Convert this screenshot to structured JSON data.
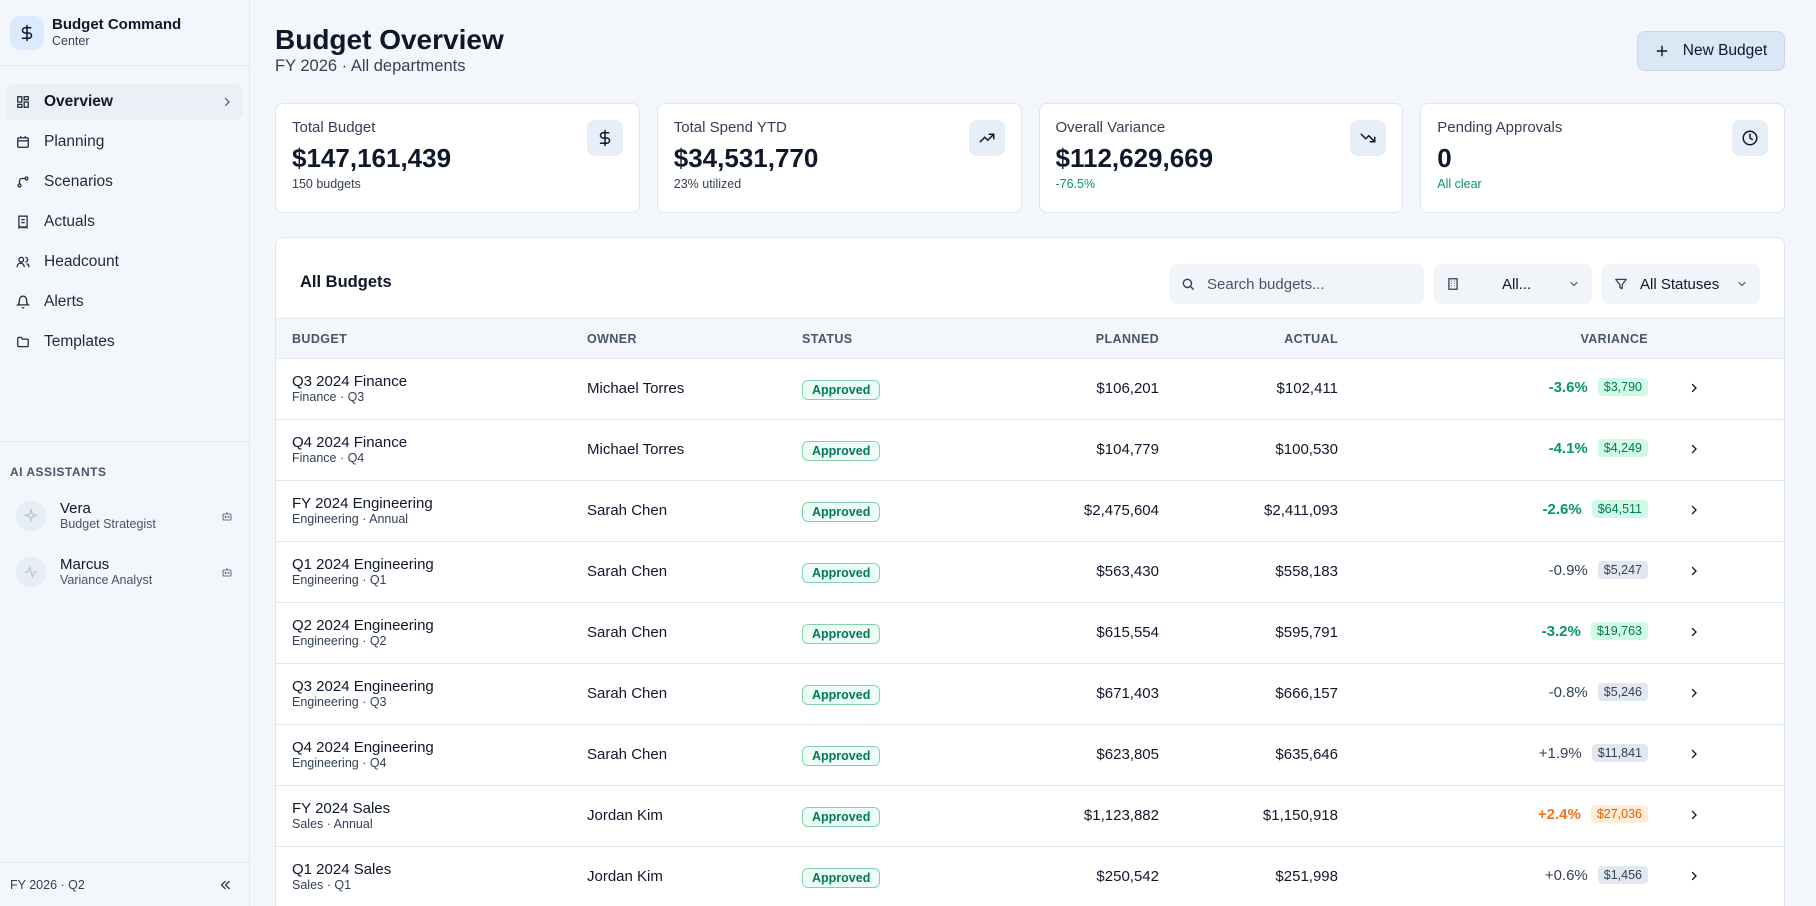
{
  "sidebar": {
    "brand_title": "Budget Command",
    "brand_sub": "Center",
    "nav": [
      {
        "label": "Overview",
        "icon": "grid-icon",
        "active": true
      },
      {
        "label": "Planning",
        "icon": "calendar-icon"
      },
      {
        "label": "Scenarios",
        "icon": "branch-icon"
      },
      {
        "label": "Actuals",
        "icon": "receipt-icon"
      },
      {
        "label": "Headcount",
        "icon": "users-icon"
      },
      {
        "label": "Alerts",
        "icon": "bell-icon"
      },
      {
        "label": "Templates",
        "icon": "folder-icon"
      }
    ],
    "section_label": "AI ASSISTANTS",
    "assistants": [
      {
        "name": "Vera",
        "role": "Budget Strategist"
      },
      {
        "name": "Marcus",
        "role": "Variance Analyst"
      }
    ],
    "footer_period": "FY 2026 · Q2"
  },
  "header": {
    "title": "Budget Overview",
    "subtitle": "FY 2026 · All departments",
    "new_button": "New Budget"
  },
  "cards": [
    {
      "label": "Total Budget",
      "value": "$147,161,439",
      "note": "150 budgets",
      "note_color": "default",
      "icon": "dollar-icon"
    },
    {
      "label": "Total Spend YTD",
      "value": "$34,531,770",
      "note": "23% utilized",
      "note_color": "default",
      "icon": "trending-up-icon"
    },
    {
      "label": "Overall Variance",
      "value": "$112,629,669",
      "note": "-76.5%",
      "note_color": "green",
      "icon": "trending-down-icon"
    },
    {
      "label": "Pending Approvals",
      "value": "0",
      "note": "All clear",
      "note_color": "green",
      "icon": "clock-icon"
    }
  ],
  "table": {
    "title": "All Budgets",
    "search_placeholder": "Search budgets...",
    "dept_filter": "All...",
    "status_filter": "All Statuses",
    "headers": {
      "budget": "BUDGET",
      "owner": "OWNER",
      "status": "STATUS",
      "planned": "PLANNED",
      "actual": "ACTUAL",
      "variance": "VARIANCE"
    },
    "rows": [
      {
        "name": "Q3 2024 Finance",
        "sub": "Finance · Q3",
        "owner": "Michael Torres",
        "status": "Approved",
        "planned": "$106,201",
        "actual": "$102,411",
        "pct": "-3.6%",
        "amt": "$3,790",
        "tone": "green"
      },
      {
        "name": "Q4 2024 Finance",
        "sub": "Finance · Q4",
        "owner": "Michael Torres",
        "status": "Approved",
        "planned": "$104,779",
        "actual": "$100,530",
        "pct": "-4.1%",
        "amt": "$4,249",
        "tone": "green"
      },
      {
        "name": "FY 2024 Engineering",
        "sub": "Engineering · Annual",
        "owner": "Sarah Chen",
        "status": "Approved",
        "planned": "$2,475,604",
        "actual": "$2,411,093",
        "pct": "-2.6%",
        "amt": "$64,511",
        "tone": "green"
      },
      {
        "name": "Q1 2024 Engineering",
        "sub": "Engineering · Q1",
        "owner": "Sarah Chen",
        "status": "Approved",
        "planned": "$563,430",
        "actual": "$558,183",
        "pct": "-0.9%",
        "amt": "$5,247",
        "tone": "gray"
      },
      {
        "name": "Q2 2024 Engineering",
        "sub": "Engineering · Q2",
        "owner": "Sarah Chen",
        "status": "Approved",
        "planned": "$615,554",
        "actual": "$595,791",
        "pct": "-3.2%",
        "amt": "$19,763",
        "tone": "green"
      },
      {
        "name": "Q3 2024 Engineering",
        "sub": "Engineering · Q3",
        "owner": "Sarah Chen",
        "status": "Approved",
        "planned": "$671,403",
        "actual": "$666,157",
        "pct": "-0.8%",
        "amt": "$5,246",
        "tone": "gray"
      },
      {
        "name": "Q4 2024 Engineering",
        "sub": "Engineering · Q4",
        "owner": "Sarah Chen",
        "status": "Approved",
        "planned": "$623,805",
        "actual": "$635,646",
        "pct": "+1.9%",
        "amt": "$11,841",
        "tone": "gray"
      },
      {
        "name": "FY 2024 Sales",
        "sub": "Sales · Annual",
        "owner": "Jordan Kim",
        "status": "Approved",
        "planned": "$1,123,882",
        "actual": "$1,150,918",
        "pct": "+2.4%",
        "amt": "$27,036",
        "tone": "orange"
      },
      {
        "name": "Q1 2024 Sales",
        "sub": "Sales · Q1",
        "owner": "Jordan Kim",
        "status": "Approved",
        "planned": "$250,542",
        "actual": "$251,998",
        "pct": "+0.6%",
        "amt": "$1,456",
        "tone": "gray"
      }
    ]
  }
}
